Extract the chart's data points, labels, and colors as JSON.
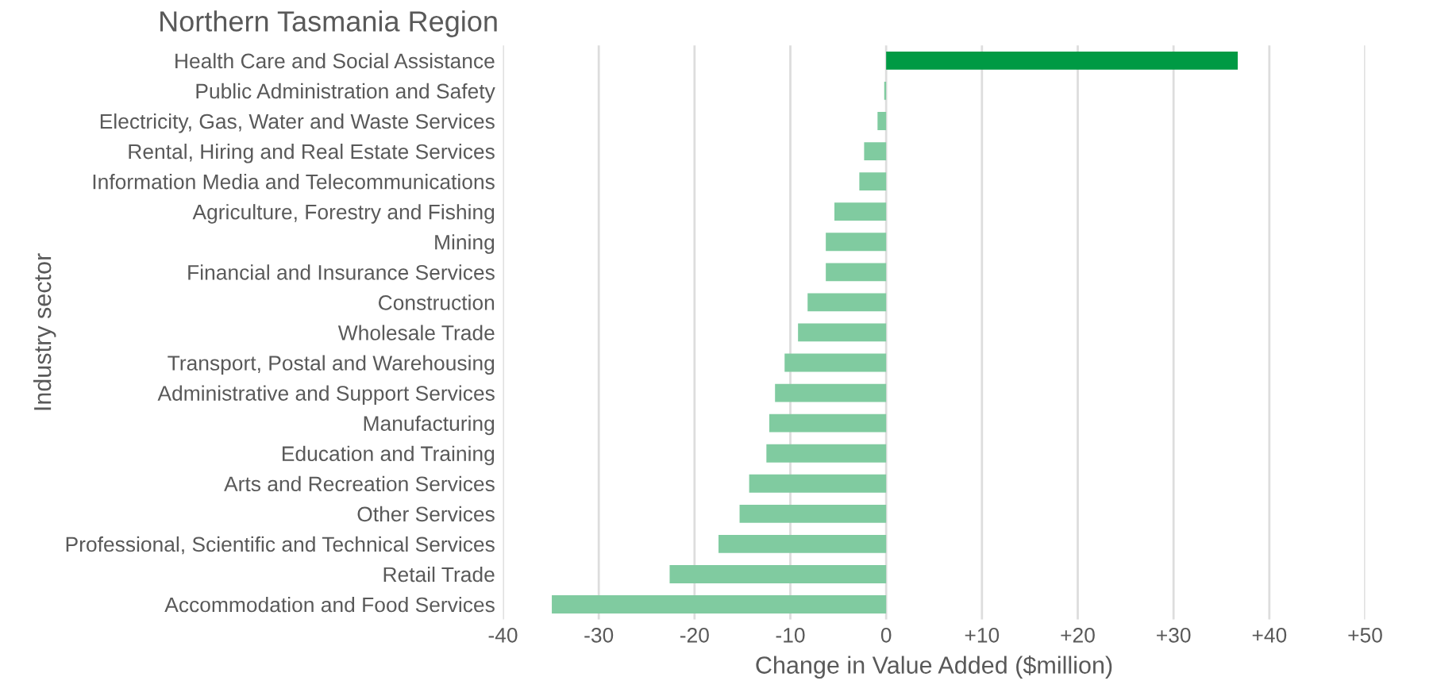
{
  "chart_data": {
    "type": "bar",
    "orientation": "horizontal",
    "title": "Northern Tasmania Region",
    "xlabel": "Change in Value Added ($million)",
    "ylabel": "Industry sector",
    "categories": [
      "Health Care and Social Assistance",
      "Public Administration and Safety",
      "Electricity, Gas, Water and Waste Services",
      "Rental, Hiring and Real Estate Services",
      "Information Media and Telecommunications",
      "Agriculture, Forestry and Fishing",
      "Mining",
      "Financial and Insurance Services",
      "Construction",
      "Wholesale Trade",
      "Transport, Postal and Warehousing",
      "Administrative and Support Services",
      "Manufacturing",
      "Education and Training",
      "Arts and Recreation Services",
      "Other Services",
      "Professional, Scientific and Technical Services",
      "Retail Trade",
      "Accommodation and Food Services"
    ],
    "values": [
      36.7,
      -0.2,
      -0.9,
      -2.3,
      -2.8,
      -5.4,
      -6.3,
      -6.3,
      -8.2,
      -9.2,
      -10.6,
      -11.6,
      -12.2,
      -12.5,
      -14.3,
      -15.3,
      -17.5,
      -22.6,
      -34.9
    ],
    "colors": [
      "#009a44",
      "#80cba0",
      "#80cba0",
      "#80cba0",
      "#80cba0",
      "#80cba0",
      "#80cba0",
      "#80cba0",
      "#80cba0",
      "#80cba0",
      "#80cba0",
      "#80cba0",
      "#80cba0",
      "#80cba0",
      "#80cba0",
      "#80cba0",
      "#80cba0",
      "#80cba0",
      "#80cba0"
    ],
    "xlim": [
      -40,
      50
    ],
    "xticks": [
      {
        "value": -40,
        "label": "-40"
      },
      {
        "value": -30,
        "label": "-30"
      },
      {
        "value": -20,
        "label": "-20"
      },
      {
        "value": -10,
        "label": "-10"
      },
      {
        "value": 0,
        "label": "0"
      },
      {
        "value": 10,
        "label": "+10"
      },
      {
        "value": 20,
        "label": "+20"
      },
      {
        "value": 30,
        "label": "+30"
      },
      {
        "value": 40,
        "label": "+40"
      },
      {
        "value": 50,
        "label": "+50"
      }
    ],
    "grid": "x",
    "legend": false
  }
}
